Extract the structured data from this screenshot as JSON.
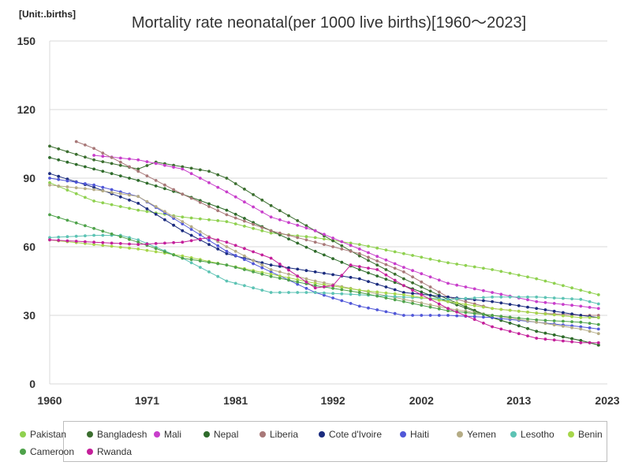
{
  "chart_data": {
    "type": "line",
    "unit_label": "[Unit:.births]",
    "title": "Mortality rate neonatal(per 1000 live births)[1960～2023]",
    "xlabel": "",
    "ylabel": "",
    "xlim": [
      1960,
      2023
    ],
    "ylim": [
      0,
      150
    ],
    "x_ticks": [
      1960,
      1971,
      1981,
      1992,
      2002,
      2013,
      2023
    ],
    "y_ticks": [
      0,
      30,
      60,
      90,
      120,
      150
    ],
    "grid": "horizontal",
    "legend_position": "bottom",
    "series": [
      {
        "name": "Pakistan",
        "color": "#8fd14f",
        "x": [
          1960,
          1965,
          1970,
          1975,
          1980,
          1985,
          1990,
          1995,
          2000,
          2005,
          2010,
          2015,
          2020,
          2022
        ],
        "values": [
          88,
          80,
          76,
          73,
          71,
          66,
          64,
          61,
          57,
          53,
          50,
          46,
          41,
          39
        ]
      },
      {
        "name": "Bangladesh",
        "color": "#3b6e2f",
        "x": [
          1960,
          1965,
          1970,
          1972,
          1975,
          1978,
          1980,
          1985,
          1990,
          1995,
          2000,
          2005,
          2010,
          2015,
          2020,
          2022
        ],
        "values": [
          104,
          98,
          94,
          97,
          95,
          93,
          90,
          78,
          67,
          56,
          46,
          37,
          29,
          23,
          19,
          17
        ]
      },
      {
        "name": "Mali",
        "color": "#c83ecb",
        "x": [
          1965,
          1970,
          1975,
          1980,
          1985,
          1990,
          1995,
          2000,
          2005,
          2010,
          2015,
          2020,
          2022
        ],
        "values": [
          100,
          98,
          94,
          84,
          73,
          67,
          59,
          51,
          44,
          40,
          36,
          34,
          33
        ]
      },
      {
        "name": "Nepal",
        "color": "#2e6b2a",
        "x": [
          1960,
          1965,
          1970,
          1975,
          1980,
          1985,
          1990,
          1995,
          2000,
          2005,
          2010,
          2015,
          2020,
          2022
        ],
        "values": [
          99,
          94,
          89,
          83,
          76,
          67,
          58,
          50,
          43,
          36,
          29,
          23,
          19,
          17
        ]
      },
      {
        "name": "Liberia",
        "color": "#a87878",
        "x": [
          1963,
          1965,
          1970,
          1975,
          1980,
          1985,
          1990,
          1995,
          2000,
          2005,
          2010,
          2015,
          2020,
          2022
        ],
        "values": [
          106,
          103,
          93,
          83,
          74,
          67,
          62,
          57,
          49,
          38,
          33,
          31,
          30,
          30
        ]
      },
      {
        "name": "Cote d'Ivoire",
        "color": "#1a2b7e",
        "x": [
          1960,
          1965,
          1970,
          1975,
          1980,
          1985,
          1990,
          1995,
          2000,
          2005,
          2010,
          2015,
          2020,
          2022
        ],
        "values": [
          92,
          86,
          79,
          67,
          57,
          52,
          49,
          46,
          40,
          38,
          36,
          33,
          30,
          29
        ]
      },
      {
        "name": "Haiti",
        "color": "#5057d8",
        "x": [
          1960,
          1965,
          1970,
          1975,
          1980,
          1985,
          1990,
          1995,
          2000,
          2005,
          2010,
          2015,
          2020,
          2022
        ],
        "values": [
          90,
          87,
          82,
          70,
          58,
          49,
          40,
          34,
          30,
          30,
          29,
          27,
          25,
          24
        ]
      },
      {
        "name": "Yemen",
        "color": "#b5ac85",
        "x": [
          1960,
          1965,
          1970,
          1975,
          1980,
          1985,
          1990,
          1995,
          2000,
          2005,
          2010,
          2015,
          2020,
          2022
        ],
        "values": [
          87,
          85,
          82,
          71,
          60,
          50,
          45,
          41,
          37,
          33,
          30,
          27,
          24,
          22
        ]
      },
      {
        "name": "Lesotho",
        "color": "#5cc3b4",
        "x": [
          1960,
          1965,
          1968,
          1970,
          1975,
          1980,
          1985,
          1990,
          1995,
          2000,
          2005,
          2010,
          2015,
          2020,
          2022
        ],
        "values": [
          64,
          65,
          65,
          63,
          55,
          45,
          40,
          40,
          39,
          38,
          37,
          38,
          38,
          37,
          35
        ]
      },
      {
        "name": "Benin",
        "color": "#a6d64a",
        "x": [
          1960,
          1965,
          1970,
          1975,
          1980,
          1985,
          1990,
          1995,
          2000,
          2005,
          2010,
          2015,
          2020,
          2022
        ],
        "values": [
          63,
          61,
          59,
          56,
          52,
          48,
          44,
          41,
          39,
          36,
          33,
          31,
          29,
          29
        ]
      },
      {
        "name": "Cameroon",
        "color": "#4ea24a",
        "x": [
          1960,
          1965,
          1970,
          1975,
          1980,
          1985,
          1990,
          1995,
          2000,
          2005,
          2010,
          2015,
          2020,
          2022
        ],
        "values": [
          74,
          68,
          62,
          55,
          52,
          47,
          43,
          40,
          36,
          32,
          30,
          28,
          27,
          26
        ]
      },
      {
        "name": "Rwanda",
        "color": "#c41f9a",
        "x": [
          1960,
          1965,
          1970,
          1975,
          1978,
          1980,
          1985,
          1990,
          1992,
          1994,
          1997,
          2000,
          2005,
          2010,
          2015,
          2020,
          2022
        ],
        "values": [
          63,
          62,
          61,
          62,
          64,
          62,
          55,
          42,
          43,
          52,
          50,
          43,
          33,
          25,
          20,
          18,
          18
        ]
      }
    ]
  }
}
